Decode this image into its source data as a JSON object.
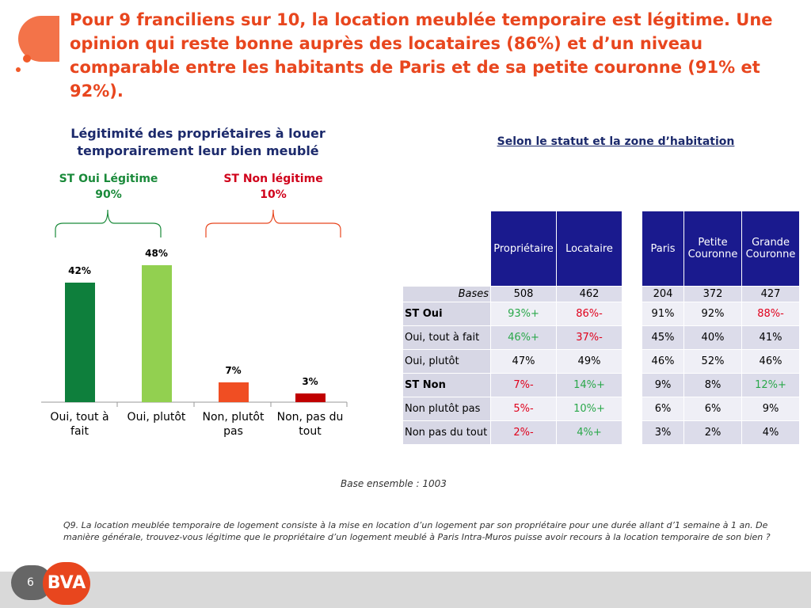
{
  "header": {
    "title": "Pour 9 franciliens sur 10, la location meublée temporaire est légitime. Une opinion qui reste bonne auprès des locataires (86%) et d’un niveau comparable entre les habitants de Paris et de sa petite couronne (91% et 92%)."
  },
  "chart_data": {
    "type": "bar",
    "title": "Légitimité des propriétaires à louer temporairement leur bien meublé",
    "categories": [
      "Oui, tout à fait",
      "Oui, plutôt",
      "Non, plutôt pas",
      "Non, pas du tout"
    ],
    "values": [
      42,
      48,
      7,
      3
    ],
    "value_labels": [
      "42%",
      "48%",
      "7%",
      "3%"
    ],
    "colors": [
      "#0e7f3c",
      "#92d050",
      "#f04e23",
      "#c00000"
    ],
    "groups": [
      {
        "name": "ST Oui Légitime",
        "total": "90%",
        "color": "#1a8a3a"
      },
      {
        "name": "ST Non légitime",
        "total": "10%",
        "color": "#d0021b"
      }
    ]
  },
  "table": {
    "subtitle": "Selon le statut et la zone d’habitation",
    "columns": [
      "Propriétaire",
      "Locataire",
      "Paris",
      "Petite Couronne",
      "Grande Couronne"
    ],
    "rows": [
      [
        "Bases",
        "508",
        "462",
        "204",
        "372",
        "427"
      ],
      [
        "ST Oui",
        "93%+",
        "86%-",
        "91%",
        "92%",
        "88%-"
      ],
      [
        "Oui, tout à fait",
        "46%+",
        "37%-",
        "45%",
        "40%",
        "41%"
      ],
      [
        "Oui, plutôt",
        "47%",
        "49%",
        "46%",
        "52%",
        "46%"
      ],
      [
        "ST Non",
        "7%-",
        "14%+",
        "9%",
        "8%",
        "12%+"
      ],
      [
        "Non plutôt pas",
        "5%-",
        "10%+",
        "6%",
        "6%",
        "9%"
      ],
      [
        "Non pas du tout",
        "2%-",
        "4%+",
        "3%",
        "2%",
        "4%"
      ]
    ]
  },
  "base_note": "Base ensemble : 1003",
  "question": "Q9. La location meublée temporaire de logement consiste à la mise en location d’un logement par son propriétaire pour une durée allant d’1 semaine à 1 an. De manière générale, trouvez-vous légitime que le propriétaire d’un logement meublé à Paris Intra-Muros puisse avoir recours à la location temporaire de son bien  ?",
  "footer": {
    "page": "6",
    "logo": "BVA"
  }
}
